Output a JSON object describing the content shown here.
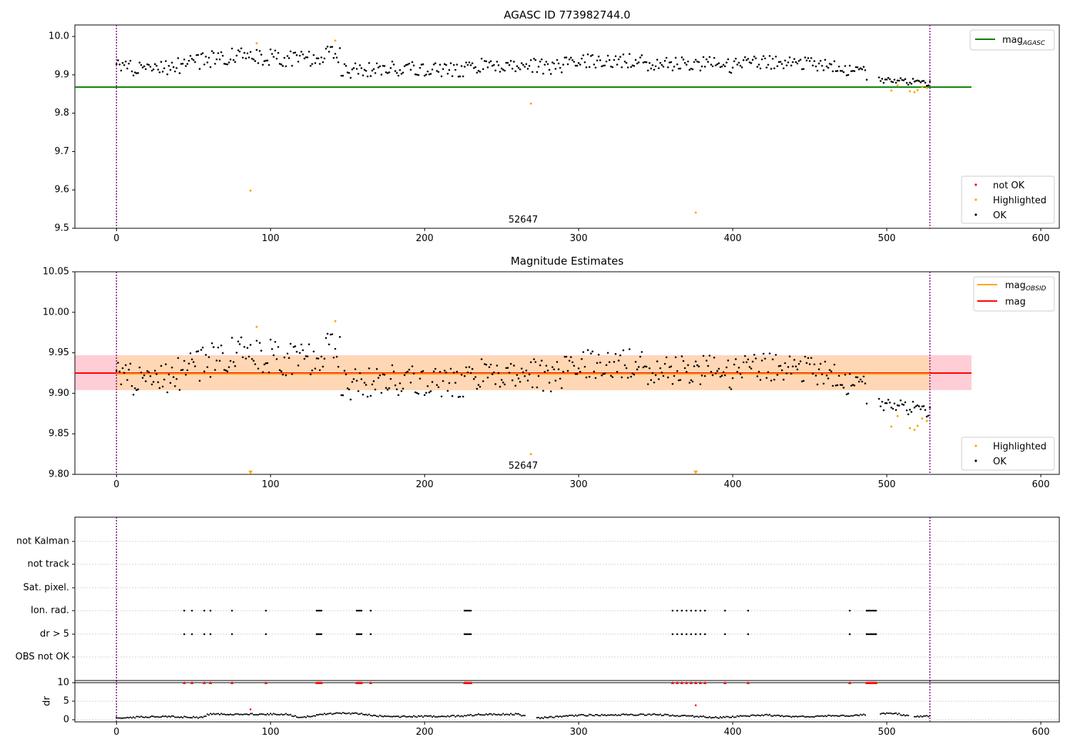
{
  "chart_data": [
    {
      "type": "scatter",
      "title": "AGASC ID 773982744.0",
      "xlim": [
        -27,
        612
      ],
      "ylim": [
        9.5,
        10.03
      ],
      "xticks": [
        0,
        100,
        200,
        300,
        400,
        500,
        600
      ],
      "yticks": [
        9.5,
        9.6,
        9.7,
        9.8,
        9.9,
        10.0
      ],
      "ytick_labels": [
        "9.5",
        "9.6",
        "9.7",
        "9.8",
        "9.9",
        "10.0"
      ],
      "obs_boundaries": [
        0,
        528
      ],
      "obs_label": {
        "text": "52647",
        "x": 264
      },
      "mag_agasc": {
        "value": 9.868,
        "x_range": [
          -27,
          555
        ],
        "color": "#008000"
      },
      "series": [
        {
          "name": "not OK",
          "color": "#ff0000",
          "points": []
        },
        {
          "name": "Highlighted",
          "color": "#ffa500",
          "points": [
            [
              87,
              9.598
            ],
            [
              91,
              9.982
            ],
            [
              142,
              9.989
            ],
            [
              269,
              9.825
            ],
            [
              376,
              9.541
            ],
            [
              503,
              9.859
            ],
            [
              507,
              9.872
            ],
            [
              515,
              9.857
            ],
            [
              518,
              9.855
            ],
            [
              520,
              9.86
            ],
            [
              523,
              9.869
            ],
            [
              526,
              9.866
            ]
          ]
        },
        {
          "name": "OK",
          "color": "#000000",
          "segments": [
            {
              "x0": 0,
              "x1": 145,
              "base": [
                [
                  0,
                  9.918
                ],
                [
                  20,
                  9.912
                ],
                [
                  40,
                  9.925
                ],
                [
                  60,
                  9.94
                ],
                [
                  80,
                  9.95
                ],
                [
                  100,
                  9.945
                ],
                [
                  120,
                  9.94
                ],
                [
                  140,
                  9.955
                ],
                [
                  145,
                  9.95
                ]
              ],
              "amp": 0.022
            },
            {
              "x0": 146,
              "x1": 230,
              "base": [
                [
                  146,
                  9.91
                ],
                [
                  170,
                  9.915
                ],
                [
                  200,
                  9.915
                ],
                [
                  230,
                  9.915
                ]
              ],
              "amp": 0.02
            },
            {
              "x0": 231,
              "x1": 300,
              "base": [
                [
                  231,
                  9.925
                ],
                [
                  260,
                  9.925
                ],
                [
                  280,
                  9.92
                ],
                [
                  300,
                  9.93
                ]
              ],
              "amp": 0.02
            },
            {
              "x0": 301,
              "x1": 400,
              "base": [
                [
                  301,
                  9.935
                ],
                [
                  330,
                  9.94
                ],
                [
                  350,
                  9.925
                ],
                [
                  380,
                  9.93
                ],
                [
                  400,
                  9.92
                ]
              ],
              "amp": 0.02
            },
            {
              "x0": 401,
              "x1": 487,
              "base": [
                [
                  401,
                  9.935
                ],
                [
                  440,
                  9.93
                ],
                [
                  470,
                  9.92
                ],
                [
                  487,
                  9.905
                ]
              ],
              "amp": 0.018
            },
            {
              "x0": 495,
              "x1": 528,
              "base": [
                [
                  495,
                  9.885
                ],
                [
                  510,
                  9.885
                ],
                [
                  528,
                  9.878
                ]
              ],
              "amp": 0.01
            }
          ]
        }
      ],
      "legend_top": [
        {
          "label": "mag",
          "sub": "AGASC",
          "color": "#008000"
        }
      ],
      "legend_bottom": [
        {
          "label": "not OK",
          "color": "#ff0000"
        },
        {
          "label": "Highlighted",
          "color": "#ffa500"
        },
        {
          "label": "OK",
          "color": "#000000"
        }
      ]
    },
    {
      "type": "scatter",
      "title": "Magnitude Estimates",
      "xlim": [
        -27,
        612
      ],
      "ylim": [
        9.8,
        10.05
      ],
      "xticks": [
        0,
        100,
        200,
        300,
        400,
        500,
        600
      ],
      "yticks": [
        9.8,
        9.85,
        9.9,
        9.95,
        10.0,
        10.05
      ],
      "ytick_labels": [
        "9.80",
        "9.85",
        "9.90",
        "9.95",
        "10.00",
        "10.05"
      ],
      "obs_boundaries": [
        0,
        528
      ],
      "obs_label": {
        "text": "52647",
        "x": 264
      },
      "mag": {
        "value": 9.925,
        "band": [
          9.904,
          9.947
        ],
        "x_range": [
          -27,
          555
        ],
        "color": "#ff0000"
      },
      "mag_obsid": {
        "value": 9.924,
        "band": [
          9.904,
          9.946
        ],
        "x_range": [
          0,
          528
        ],
        "color": "#ffa500"
      },
      "series": [
        {
          "name": "Highlighted",
          "color": "#ffa500",
          "points": [
            [
              87,
              9.802
            ],
            [
              91,
              9.982
            ],
            [
              142,
              9.989
            ],
            [
              269,
              9.825
            ],
            [
              376,
              9.802
            ],
            [
              503,
              9.859
            ],
            [
              507,
              9.872
            ],
            [
              515,
              9.857
            ],
            [
              518,
              9.855
            ],
            [
              520,
              9.86
            ],
            [
              523,
              9.869
            ],
            [
              526,
              9.866
            ]
          ],
          "markers": [
            [
              87,
              9.802,
              "down"
            ],
            [
              376,
              9.802,
              "down"
            ]
          ]
        },
        {
          "name": "OK",
          "color": "#000000",
          "segments": [
            {
              "x0": 0,
              "x1": 145,
              "base": [
                [
                  0,
                  9.918
                ],
                [
                  20,
                  9.912
                ],
                [
                  40,
                  9.925
                ],
                [
                  60,
                  9.94
                ],
                [
                  80,
                  9.95
                ],
                [
                  100,
                  9.945
                ],
                [
                  120,
                  9.94
                ],
                [
                  140,
                  9.955
                ],
                [
                  145,
                  9.95
                ]
              ],
              "amp": 0.022
            },
            {
              "x0": 146,
              "x1": 230,
              "base": [
                [
                  146,
                  9.91
                ],
                [
                  170,
                  9.915
                ],
                [
                  200,
                  9.915
                ],
                [
                  230,
                  9.915
                ]
              ],
              "amp": 0.02
            },
            {
              "x0": 231,
              "x1": 300,
              "base": [
                [
                  231,
                  9.925
                ],
                [
                  260,
                  9.925
                ],
                [
                  280,
                  9.92
                ],
                [
                  300,
                  9.93
                ]
              ],
              "amp": 0.02
            },
            {
              "x0": 301,
              "x1": 400,
              "base": [
                [
                  301,
                  9.935
                ],
                [
                  330,
                  9.94
                ],
                [
                  350,
                  9.925
                ],
                [
                  380,
                  9.93
                ],
                [
                  400,
                  9.92
                ]
              ],
              "amp": 0.02
            },
            {
              "x0": 401,
              "x1": 487,
              "base": [
                [
                  401,
                  9.935
                ],
                [
                  440,
                  9.93
                ],
                [
                  470,
                  9.92
                ],
                [
                  487,
                  9.905
                ]
              ],
              "amp": 0.018
            },
            {
              "x0": 495,
              "x1": 528,
              "base": [
                [
                  495,
                  9.885
                ],
                [
                  510,
                  9.885
                ],
                [
                  528,
                  9.878
                ]
              ],
              "amp": 0.01
            }
          ]
        }
      ],
      "legend_top": [
        {
          "label": "mag",
          "sub": "OBSID",
          "color": "#ffa500"
        },
        {
          "label": "mag",
          "sub": "",
          "color": "#ff0000"
        }
      ],
      "legend_bottom": [
        {
          "label": "Highlighted",
          "color": "#ffa500"
        },
        {
          "label": "OK",
          "color": "#000000"
        }
      ]
    },
    {
      "type": "scatter",
      "title": "",
      "xlim": [
        -27,
        612
      ],
      "xticks": [
        0,
        100,
        200,
        300,
        400,
        500,
        600
      ],
      "obs_boundaries": [
        0,
        528
      ],
      "flag_rows": [
        "not Kalman",
        "not track",
        "Sat. pixel.",
        "Ion. rad.",
        "dr > 5",
        "OBS not OK"
      ],
      "flag_points": {
        "Ion. rad.": [
          44,
          49,
          57,
          61,
          75,
          97,
          130,
          131,
          132,
          133,
          156,
          157,
          158,
          159,
          165,
          226,
          227,
          228,
          229,
          230,
          361,
          364,
          367,
          370,
          373,
          376,
          379,
          382,
          395,
          410,
          476,
          487,
          488,
          489,
          490,
          491,
          492,
          493
        ],
        "dr > 5": [
          44,
          49,
          57,
          61,
          75,
          97,
          130,
          131,
          132,
          133,
          156,
          157,
          158,
          159,
          165,
          226,
          227,
          228,
          229,
          230,
          361,
          364,
          367,
          370,
          373,
          376,
          379,
          382,
          395,
          410,
          476,
          487,
          488,
          489,
          490,
          491,
          492,
          493
        ]
      },
      "dr": {
        "ylabel": "dr",
        "ylim": [
          0,
          10
        ],
        "yticks": [
          0,
          5,
          10
        ],
        "clip_value": 10,
        "outliers": [
          [
            87,
            2.8
          ],
          [
            376,
            3.9
          ]
        ],
        "profile": [
          [
            0,
            0.5
          ],
          [
            30,
            0.9
          ],
          [
            55,
            0.6
          ],
          [
            60,
            1.5
          ],
          [
            110,
            1.5
          ],
          [
            120,
            0.6
          ],
          [
            135,
            1.5
          ],
          [
            150,
            1.8
          ],
          [
            160,
            1.5
          ],
          [
            175,
            0.8
          ],
          [
            200,
            0.9
          ],
          [
            225,
            1.0
          ],
          [
            235,
            1.4
          ],
          [
            260,
            1.5
          ],
          [
            270,
            0.4
          ],
          [
            285,
            0.8
          ],
          [
            300,
            1.2
          ],
          [
            320,
            1.3
          ],
          [
            350,
            1.4
          ],
          [
            370,
            1.0
          ],
          [
            390,
            0.6
          ],
          [
            405,
            0.9
          ],
          [
            420,
            1.3
          ],
          [
            440,
            0.8
          ],
          [
            460,
            1.0
          ],
          [
            480,
            1.2
          ],
          [
            495,
            1.6
          ],
          [
            505,
            1.8
          ],
          [
            515,
            0.9
          ],
          [
            528,
            1.0
          ]
        ],
        "gaps": [
          [
            266,
            272
          ],
          [
            487,
            495
          ],
          [
            515,
            517
          ]
        ],
        "clipped_x": [
          44,
          49,
          57,
          61,
          75,
          97,
          130,
          131,
          132,
          133,
          156,
          157,
          158,
          159,
          165,
          226,
          227,
          228,
          229,
          230,
          361,
          364,
          367,
          370,
          373,
          376,
          379,
          382,
          395,
          410,
          476,
          487,
          488,
          489,
          490,
          491,
          492,
          493
        ]
      }
    }
  ],
  "colors": {
    "boundary": "#800080",
    "grid": "#b0b0b0",
    "band_mag": "#ffc0cb",
    "band_obsid": "#ffd8b0"
  }
}
